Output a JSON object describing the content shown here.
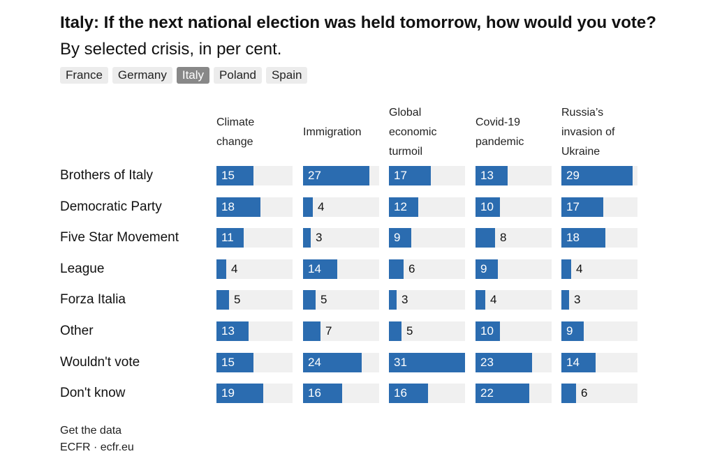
{
  "header": {
    "title_bold": "Italy: If the next national election was held tomorrow, how would you vote?",
    "title_rest": " By selected crisis, in per cent."
  },
  "tabs": [
    "France",
    "Germany",
    "Italy",
    "Poland",
    "Spain"
  ],
  "active_tab": "Italy",
  "colors": {
    "bar": "#2b6cb0",
    "track": "#f0f0f0",
    "active_tab": "#888888"
  },
  "chart_data": {
    "type": "bar",
    "title": "Italy: If the next national election was held tomorrow, how would you vote? By selected crisis, in per cent.",
    "categories": [
      "Brothers of Italy",
      "Democratic Party",
      "Five Star Movement",
      "League",
      "Forza Italia",
      "Other",
      "Wouldn't vote",
      "Don't know"
    ],
    "series": [
      {
        "name": "Climate\nchange",
        "values": [
          15,
          18,
          11,
          4,
          5,
          13,
          15,
          19
        ]
      },
      {
        "name": "Immigration",
        "values": [
          27,
          4,
          3,
          14,
          5,
          7,
          24,
          16
        ]
      },
      {
        "name": "Global\neconomic\nturmoil",
        "values": [
          17,
          12,
          9,
          6,
          3,
          5,
          31,
          16
        ]
      },
      {
        "name": "Covid-19\npandemic",
        "values": [
          13,
          10,
          8,
          9,
          4,
          10,
          23,
          22
        ]
      },
      {
        "name": "Russia’s\ninvasion of\nUkraine",
        "values": [
          29,
          17,
          18,
          4,
          3,
          9,
          14,
          6
        ]
      }
    ],
    "xlim": [
      0,
      31
    ]
  },
  "footer": {
    "get_data": "Get the data",
    "source": "ECFR · ecfr.eu"
  }
}
